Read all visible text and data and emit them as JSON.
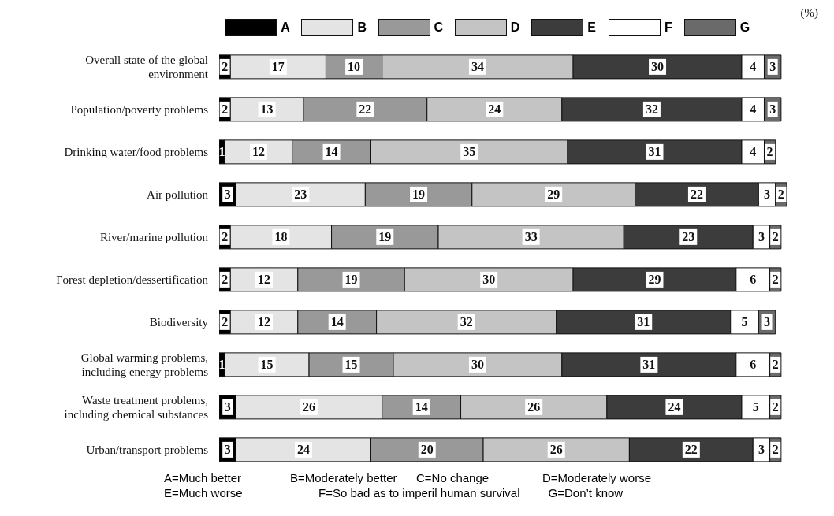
{
  "chart_data": {
    "type": "bar",
    "orientation": "horizontal",
    "stacked": true,
    "data_labels": true,
    "legend": "top",
    "xlabel": "(%)",
    "categories": [
      "Overall state of the global environment",
      "Population/poverty problems",
      "Drinking water/food problems",
      "Air pollution",
      "River/marine pollution",
      "Forest depletion/dessertification",
      "Biodiversity",
      "Global warming problems, including energy problems",
      "Waste treatment problems, including chemical substances",
      "Urban/transport problems"
    ],
    "series": [
      {
        "name": "A",
        "color": "#000000",
        "values": [
          2,
          2,
          1,
          3,
          2,
          2,
          2,
          1,
          3,
          3
        ]
      },
      {
        "name": "B",
        "color": "#e4e4e4",
        "values": [
          17,
          13,
          12,
          23,
          18,
          12,
          12,
          15,
          26,
          24
        ]
      },
      {
        "name": "C",
        "color": "#999999",
        "values": [
          10,
          22,
          14,
          19,
          19,
          19,
          14,
          15,
          14,
          20
        ]
      },
      {
        "name": "D",
        "color": "#c4c4c4",
        "values": [
          34,
          24,
          35,
          29,
          33,
          30,
          32,
          30,
          26,
          26
        ]
      },
      {
        "name": "E",
        "color": "#3c3c3c",
        "values": [
          30,
          32,
          31,
          22,
          23,
          29,
          31,
          31,
          24,
          22
        ]
      },
      {
        "name": "F",
        "color": "#ffffff",
        "values": [
          4,
          4,
          4,
          3,
          3,
          6,
          5,
          6,
          5,
          3
        ]
      },
      {
        "name": "G",
        "color": "#6a6a6a",
        "values": [
          3,
          3,
          2,
          2,
          2,
          2,
          3,
          2,
          2,
          2
        ]
      }
    ],
    "annotations": [
      "A=Much better",
      "B=Moderately better",
      "C=No change",
      "D=Moderately worse",
      "E=Much worse",
      "F=So bad as to imperil human survival",
      "G=Don’t know"
    ]
  }
}
